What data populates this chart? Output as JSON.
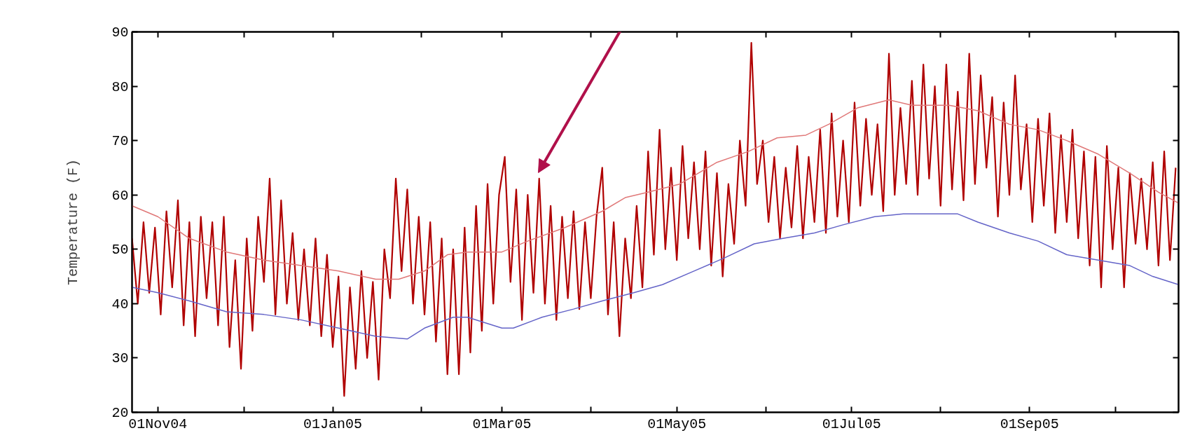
{
  "chart_data": {
    "type": "line",
    "ylabel": "Temperature (F)",
    "xlim": [
      "2004-10-23",
      "2005-10-23"
    ],
    "xticks": [
      {
        "value": "2004-11-01",
        "label": "01Nov04"
      },
      {
        "value": "2004-12-01",
        "label": null
      },
      {
        "value": "2005-01-01",
        "label": "01Jan05"
      },
      {
        "value": "2005-02-01",
        "label": null
      },
      {
        "value": "2005-03-01",
        "label": "01Mar05"
      },
      {
        "value": "2005-04-01",
        "label": null
      },
      {
        "value": "2005-05-01",
        "label": "01May05"
      },
      {
        "value": "2005-06-01",
        "label": null
      },
      {
        "value": "2005-07-01",
        "label": "01Jul05"
      },
      {
        "value": "2005-08-01",
        "label": null
      },
      {
        "value": "2005-09-01",
        "label": "01Sep05"
      },
      {
        "value": "2005-10-01",
        "label": null
      }
    ],
    "ylim": [
      20,
      90
    ],
    "yticks": [
      20,
      30,
      40,
      50,
      60,
      70,
      80,
      90
    ],
    "grid": false,
    "marker": "none",
    "line_style": "solid",
    "series": [
      {
        "color": "#b00000",
        "x": [
          "2004-10-23",
          "2004-10-25",
          "2004-10-27",
          "2004-10-29",
          "2004-10-31",
          "2004-11-02",
          "2004-11-04",
          "2004-11-06",
          "2004-11-08",
          "2004-11-10",
          "2004-11-12",
          "2004-11-14",
          "2004-11-16",
          "2004-11-18",
          "2004-11-20",
          "2004-11-22",
          "2004-11-24",
          "2004-11-26",
          "2004-11-28",
          "2004-11-30",
          "2004-12-02",
          "2004-12-04",
          "2004-12-06",
          "2004-12-08",
          "2004-12-10",
          "2004-12-12",
          "2004-12-14",
          "2004-12-16",
          "2004-12-18",
          "2004-12-20",
          "2004-12-22",
          "2004-12-24",
          "2004-12-26",
          "2004-12-28",
          "2004-12-30",
          "2005-01-01",
          "2005-01-03",
          "2005-01-05",
          "2005-01-07",
          "2005-01-09",
          "2005-01-11",
          "2005-01-13",
          "2005-01-15",
          "2005-01-17",
          "2005-01-19",
          "2005-01-21",
          "2005-01-23",
          "2005-01-25",
          "2005-01-27",
          "2005-01-29",
          "2005-01-31",
          "2005-02-02",
          "2005-02-04",
          "2005-02-06",
          "2005-02-08",
          "2005-02-10",
          "2005-02-12",
          "2005-02-14",
          "2005-02-16",
          "2005-02-18",
          "2005-02-20",
          "2005-02-22",
          "2005-02-24",
          "2005-02-26",
          "2005-02-28",
          "2005-03-02",
          "2005-03-04",
          "2005-03-06",
          "2005-03-08",
          "2005-03-10",
          "2005-03-12",
          "2005-03-14",
          "2005-03-16",
          "2005-03-18",
          "2005-03-20",
          "2005-03-22",
          "2005-03-24",
          "2005-03-26",
          "2005-03-28",
          "2005-03-30",
          "2005-04-01",
          "2005-04-03",
          "2005-04-05",
          "2005-04-07",
          "2005-04-09",
          "2005-04-11",
          "2005-04-13",
          "2005-04-15",
          "2005-04-17",
          "2005-04-19",
          "2005-04-21",
          "2005-04-23",
          "2005-04-25",
          "2005-04-27",
          "2005-04-29",
          "2005-05-01",
          "2005-05-03",
          "2005-05-05",
          "2005-05-07",
          "2005-05-09",
          "2005-05-11",
          "2005-05-13",
          "2005-05-15",
          "2005-05-17",
          "2005-05-19",
          "2005-05-21",
          "2005-05-23",
          "2005-05-25",
          "2005-05-27",
          "2005-05-29",
          "2005-05-31",
          "2005-06-02",
          "2005-06-04",
          "2005-06-06",
          "2005-06-08",
          "2005-06-10",
          "2005-06-12",
          "2005-06-14",
          "2005-06-16",
          "2005-06-18",
          "2005-06-20",
          "2005-06-22",
          "2005-06-24",
          "2005-06-26",
          "2005-06-28",
          "2005-06-30",
          "2005-07-02",
          "2005-07-04",
          "2005-07-06",
          "2005-07-08",
          "2005-07-10",
          "2005-07-12",
          "2005-07-14",
          "2005-07-16",
          "2005-07-18",
          "2005-07-20",
          "2005-07-22",
          "2005-07-24",
          "2005-07-26",
          "2005-07-28",
          "2005-07-30",
          "2005-08-01",
          "2005-08-03",
          "2005-08-05",
          "2005-08-07",
          "2005-08-09",
          "2005-08-11",
          "2005-08-13",
          "2005-08-15",
          "2005-08-17",
          "2005-08-19",
          "2005-08-21",
          "2005-08-23",
          "2005-08-25",
          "2005-08-27",
          "2005-08-29",
          "2005-08-31",
          "2005-09-02",
          "2005-09-04",
          "2005-09-06",
          "2005-09-08",
          "2005-09-10",
          "2005-09-12",
          "2005-09-14",
          "2005-09-16",
          "2005-09-18",
          "2005-09-20",
          "2005-09-22",
          "2005-09-24",
          "2005-09-26",
          "2005-09-28",
          "2005-09-30",
          "2005-10-02",
          "2005-10-04",
          "2005-10-06",
          "2005-10-08",
          "2005-10-10",
          "2005-10-12",
          "2005-10-14",
          "2005-10-16",
          "2005-10-18",
          "2005-10-20",
          "2005-10-22"
        ],
        "values": [
          52,
          40,
          55,
          42,
          54,
          38,
          57,
          43,
          59,
          36,
          55,
          34,
          56,
          41,
          55,
          36,
          56,
          32,
          48,
          28,
          52,
          35,
          56,
          44,
          63,
          38,
          59,
          40,
          53,
          37,
          50,
          36,
          52,
          34,
          49,
          32,
          45,
          23,
          43,
          28,
          46,
          30,
          44,
          26,
          50,
          41,
          63,
          46,
          61,
          40,
          56,
          38,
          55,
          33,
          52,
          27,
          50,
          27,
          54,
          31,
          58,
          35,
          62,
          40,
          60,
          67,
          44,
          61,
          37,
          60,
          42,
          63,
          40,
          58,
          37,
          56,
          41,
          57,
          39,
          55,
          41,
          56,
          65,
          38,
          55,
          34,
          52,
          41,
          58,
          43,
          68,
          49,
          72,
          50,
          65,
          48,
          69,
          52,
          66,
          50,
          68,
          47,
          64,
          45,
          62,
          51,
          70,
          58,
          88,
          62,
          70,
          55,
          67,
          52,
          65,
          54,
          69,
          52,
          67,
          55,
          72,
          53,
          75,
          56,
          70,
          55,
          77,
          58,
          74,
          60,
          73,
          57,
          86,
          60,
          76,
          62,
          81,
          60,
          84,
          63,
          80,
          58,
          84,
          61,
          79,
          59,
          86,
          62,
          82,
          65,
          78,
          56,
          77,
          60,
          82,
          61,
          73,
          55,
          74,
          58,
          75,
          53,
          71,
          55,
          72,
          52,
          68,
          47,
          67,
          43,
          69,
          50,
          65,
          43,
          64,
          51,
          63,
          50,
          66,
          47,
          68,
          48,
          65
        ]
      },
      {
        "color": "#e07878",
        "x": [
          "2004-10-23",
          "2004-11-01",
          "2004-11-12",
          "2004-11-25",
          "2004-12-08",
          "2004-12-21",
          "2005-01-03",
          "2005-01-16",
          "2005-01-24",
          "2005-02-02",
          "2005-02-10",
          "2005-02-17",
          "2005-03-01",
          "2005-03-10",
          "2005-03-23",
          "2005-04-05",
          "2005-04-13",
          "2005-04-21",
          "2005-05-02",
          "2005-05-15",
          "2005-05-26",
          "2005-06-05",
          "2005-06-15",
          "2005-06-23",
          "2005-07-03",
          "2005-07-14",
          "2005-07-22",
          "2005-08-04",
          "2005-08-14",
          "2005-08-25",
          "2005-09-04",
          "2005-09-14",
          "2005-09-25",
          "2005-10-06",
          "2005-10-16",
          "2005-10-23"
        ],
        "values": [
          58,
          56,
          52,
          49.5,
          48,
          47,
          46,
          44.5,
          44.5,
          46,
          49,
          49.5,
          49.5,
          51.5,
          54,
          57,
          59.5,
          60.5,
          62,
          66,
          68,
          70.5,
          71,
          73,
          76,
          77.5,
          76.5,
          76.5,
          75.5,
          73,
          72,
          70,
          67.5,
          64,
          60.5,
          58.5
        ]
      },
      {
        "color": "#6464c8",
        "x": [
          "2004-10-23",
          "2004-11-01",
          "2004-11-12",
          "2004-11-25",
          "2004-12-08",
          "2004-12-21",
          "2005-01-03",
          "2005-01-16",
          "2005-01-27",
          "2005-02-02",
          "2005-02-12",
          "2005-02-17",
          "2005-03-01",
          "2005-03-05",
          "2005-03-15",
          "2005-03-26",
          "2005-04-05",
          "2005-04-16",
          "2005-04-26",
          "2005-05-07",
          "2005-05-18",
          "2005-05-28",
          "2005-06-07",
          "2005-06-18",
          "2005-06-28",
          "2005-07-09",
          "2005-07-19",
          "2005-07-27",
          "2005-08-07",
          "2005-08-14",
          "2005-08-25",
          "2005-09-04",
          "2005-09-14",
          "2005-09-25",
          "2005-10-06",
          "2005-10-14",
          "2005-10-23"
        ],
        "values": [
          43,
          42,
          40.5,
          38.5,
          38,
          37,
          35.5,
          34,
          33.5,
          35.5,
          37.5,
          37.5,
          35.5,
          35.5,
          37.5,
          39,
          40.5,
          42,
          43.5,
          46,
          48.5,
          51,
          52,
          53,
          54.5,
          56,
          56.5,
          56.5,
          56.5,
          55,
          53,
          51.5,
          49,
          48,
          47,
          45,
          43.5
        ]
      }
    ]
  }
}
